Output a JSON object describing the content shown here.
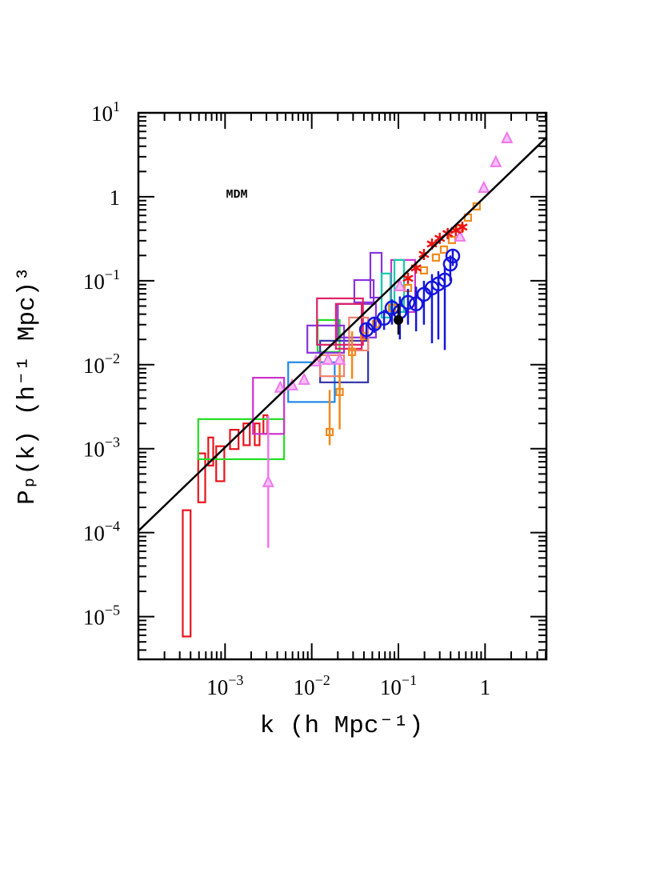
{
  "chart_data": {
    "type": "scatter",
    "x_label": "k (h Mpc⁻¹)",
    "y_label": "Pₚ(k) (h⁻¹ Mpc)³",
    "annotation": "MDM",
    "xscale": "log",
    "yscale": "log",
    "xlim": [
      0.0001,
      5.1
    ],
    "ylim": [
      3.1e-06,
      10
    ],
    "xticks": [
      {
        "value": 0.001,
        "label": "10",
        "exponent": "−3"
      },
      {
        "value": 0.01,
        "label": "10",
        "exponent": "−2"
      },
      {
        "value": 0.1,
        "label": "10",
        "exponent": "−1"
      },
      1
    ],
    "yticks": [
      {
        "value": 1e-05,
        "label": "10",
        "exponent": "−5"
      },
      {
        "value": 0.0001,
        "label": "10",
        "exponent": "−4"
      },
      {
        "value": 0.001,
        "label": "10",
        "exponent": "−3"
      },
      {
        "value": 0.01,
        "label": "10",
        "exponent": "−2"
      },
      {
        "value": 0.1,
        "label": "10",
        "exponent": "−1"
      },
      1,
      {
        "value": 10,
        "label": "10",
        "exponent": "1"
      }
    ],
    "series": [
      {
        "marker": "box",
        "color": "#e8141c",
        "xlo": [
          0.000325,
          0.00049,
          0.00064,
          0.00079,
          0.00114,
          0.00163,
          0.0022,
          0.00277
        ],
        "xhi": [
          0.0004,
          0.00059,
          0.00073,
          0.00098,
          0.00143,
          0.00193,
          0.0025,
          0.00308
        ],
        "ylo": [
          5.8e-06,
          0.00023,
          0.00063,
          0.00041,
          0.00099,
          0.0011,
          0.0011,
          0.0015
        ],
        "yhi": [
          0.000185,
          0.00088,
          0.00136,
          0.00107,
          0.00168,
          0.002,
          0.002,
          0.0025
        ]
      },
      {
        "marker": "box",
        "color": "#22dd22",
        "xlo": [
          0.00049,
          0.0117
        ],
        "xhi": [
          0.0048,
          0.021
        ],
        "ylo": [
          0.00075,
          0.0142
        ],
        "yhi": [
          0.00225,
          0.0341
        ]
      },
      {
        "marker": "box",
        "color": "#cc33cc",
        "xlo": [
          0.0021,
          0.0826
        ],
        "xhi": [
          0.0048,
          0.156
        ],
        "ylo": [
          0.0015,
          0.0425
        ],
        "yhi": [
          0.007,
          0.177
        ]
      },
      {
        "marker": "box",
        "color": "#1e88e5",
        "xlo": [
          0.00535
        ],
        "xhi": [
          0.0184
        ],
        "ylo": [
          0.0036
        ],
        "yhi": [
          0.0107
        ]
      },
      {
        "marker": "box",
        "color": "#3333aa",
        "xlo": [
          0.0125
        ],
        "xhi": [
          0.0447
        ],
        "ylo": [
          0.00617
        ],
        "yhi": [
          0.0193
        ]
      },
      {
        "marker": "box",
        "color": "#8833dd",
        "xlo": [
          0.0089,
          0.02,
          0.031,
          0.0475
        ],
        "xhi": [
          0.0236,
          0.055,
          0.0518,
          0.064
        ],
        "ylo": [
          0.0139,
          0.0211,
          0.0553,
          0.063
        ],
        "yhi": [
          0.0293,
          0.053,
          0.102,
          0.215
        ]
      },
      {
        "marker": "box",
        "color": "#dd2266",
        "xlo": [
          0.0115,
          0.019
        ],
        "xhi": [
          0.039,
          0.0377
        ],
        "ylo": [
          0.0173,
          0.0155
        ],
        "yhi": [
          0.0617,
          0.053
        ]
      },
      {
        "marker": "box",
        "color": "#f08070",
        "xlo": [
          0.0125,
          0.027
        ],
        "xhi": [
          0.0236,
          0.0447
        ],
        "ylo": [
          0.0073,
          0.0148
        ],
        "yhi": [
          0.013,
          0.0365
        ]
      },
      {
        "marker": "box",
        "color": "#11ccaa",
        "xlo": [
          0.064,
          0.09
        ],
        "xhi": [
          0.081,
          0.116
        ],
        "ylo": [
          0.0365,
          0.0425
        ],
        "yhi": [
          0.122,
          0.177
        ]
      },
      {
        "marker": "square",
        "color": "#f08a1c",
        "x": [
          0.0161,
          0.021,
          0.0292,
          0.0402,
          0.055,
          0.0843,
          0.129,
          0.197,
          0.271,
          0.335,
          0.415,
          0.513,
          0.634,
          0.8
        ],
        "y": [
          0.00158,
          0.00474,
          0.0142,
          0.022,
          0.0306,
          0.0475,
          0.082,
          0.133,
          0.189,
          0.235,
          0.306,
          0.425,
          0.565,
          0.769
        ],
        "ylo": [
          0.0011,
          0.0017,
          0.0068,
          null,
          null,
          null,
          null,
          null,
          null,
          null,
          null,
          null,
          null,
          null
        ],
        "yhi": [
          0.005,
          0.014,
          0.025,
          null,
          null,
          null,
          null,
          null,
          null,
          null,
          null,
          null,
          null,
          null
        ]
      },
      {
        "marker": "triangle",
        "color": "#ee77ee",
        "x": [
          0.00315,
          0.00433,
          0.00594,
          0.00817,
          0.0112,
          0.0154,
          0.021,
          0.104,
          0.513,
          0.968,
          1.33,
          1.79
        ],
        "y": [
          0.000398,
          0.0053,
          0.00565,
          0.00659,
          0.0109,
          0.0114,
          0.0114,
          0.0858,
          0.334,
          1.27,
          2.57,
          4.96
        ],
        "ylo": [
          6.6e-05,
          null,
          null,
          null,
          null,
          null,
          null,
          null,
          null,
          null,
          null,
          null
        ],
        "yhi": [
          0.00246,
          null,
          null,
          null,
          null,
          null,
          null,
          null,
          null,
          null,
          null,
          null
        ]
      },
      {
        "marker": "star",
        "color": "#ee1111",
        "x": [
          0.129,
          0.16,
          0.197,
          0.244,
          0.3,
          0.37,
          0.46,
          0.546
        ],
        "y": [
          0.107,
          0.142,
          0.206,
          0.274,
          0.32,
          0.365,
          0.398,
          0.435
        ]
      },
      {
        "marker": "circle",
        "color": "#1515dd",
        "x": [
          0.0428,
          0.053,
          0.0683,
          0.0843,
          0.104,
          0.129,
          0.16,
          0.197,
          0.244,
          0.289,
          0.343,
          0.397,
          0.424
        ],
        "y": [
          0.0262,
          0.0306,
          0.0357,
          0.0475,
          0.0425,
          0.0553,
          0.053,
          0.0689,
          0.082,
          0.0916,
          0.102,
          0.158,
          0.197
        ],
        "ylo": [
          0.02,
          0.024,
          0.026,
          0.03,
          0.02,
          0.03,
          0.025,
          0.03,
          0.018,
          0.02,
          0.015,
          0.1,
          0.15
        ],
        "yhi": [
          0.032,
          0.036,
          0.045,
          0.06,
          0.065,
          0.08,
          0.085,
          0.1,
          0.12,
          0.13,
          0.15,
          0.2,
          0.24
        ]
      },
      {
        "marker": "dot",
        "color": "#000000",
        "x": [
          0.1
        ],
        "y": [
          0.0341
        ],
        "ylo": [
          0.0229
        ],
        "yhi": [
          0.053
        ]
      },
      {
        "marker": "line",
        "color": "#000000",
        "x": [
          0.0001,
          5.1
        ],
        "y": [
          0.000105,
          5.07
        ]
      }
    ]
  }
}
